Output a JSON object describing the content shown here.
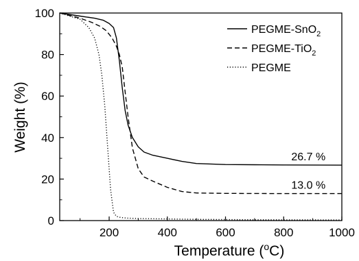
{
  "chart_data": {
    "type": "line",
    "title": "",
    "xlabel": "Temperature (°C)",
    "xlabel_parts": [
      "Temperature (",
      "o",
      "C)"
    ],
    "ylabel": "Weight (%)",
    "xlim": [
      30,
      1000
    ],
    "ylim": [
      0,
      100
    ],
    "x_ticks": [
      200,
      400,
      600,
      800,
      1000
    ],
    "y_ticks": [
      0,
      20,
      40,
      60,
      80,
      100
    ],
    "x_tick_labels": [
      "200",
      "400",
      "600",
      "800",
      "1000"
    ],
    "y_tick_labels": [
      "0",
      "20",
      "40",
      "60",
      "80",
      "100"
    ],
    "grid": false,
    "legend_position": "top-right",
    "series": [
      {
        "name": "PEGME-SnO2",
        "label_main": "PEGME-SnO",
        "label_sub": "2",
        "style": "solid",
        "color": "#000000",
        "x": [
          30,
          100,
          150,
          180,
          200,
          215,
          225,
          235,
          245,
          255,
          265,
          280,
          300,
          320,
          350,
          400,
          450,
          500,
          600,
          700,
          800,
          1000
        ],
        "y": [
          100,
          98.5,
          97.5,
          96.5,
          95,
          93,
          88,
          77,
          64,
          53,
          46,
          40,
          35.5,
          33,
          31.5,
          30,
          28.5,
          27.5,
          27,
          26.9,
          26.8,
          26.7
        ]
      },
      {
        "name": "PEGME-TiO2",
        "label_main": "PEGME-TiO",
        "label_sub": "2",
        "style": "dashed",
        "color": "#000000",
        "x": [
          30,
          100,
          140,
          170,
          190,
          210,
          225,
          235,
          245,
          255,
          265,
          280,
          300,
          320,
          350,
          400,
          450,
          500,
          600,
          800,
          1000
        ],
        "y": [
          100,
          97.5,
          95.5,
          93.5,
          91.5,
          88,
          84,
          80,
          74,
          62,
          50,
          35,
          25,
          21,
          19,
          16,
          14,
          13.3,
          13.1,
          13.0,
          13.0
        ]
      },
      {
        "name": "PEGME",
        "label_main": "PEGME",
        "label_sub": "",
        "style": "dotted",
        "color": "#000000",
        "x": [
          30,
          100,
          130,
          150,
          165,
          175,
          185,
          195,
          205,
          215,
          225,
          240,
          260,
          300,
          400,
          500,
          700,
          1000
        ],
        "y": [
          100,
          97,
          93,
          88,
          80,
          70,
          55,
          35,
          15,
          4,
          2,
          1.5,
          1.2,
          1.0,
          0.8,
          0.6,
          0.4,
          0.3
        ]
      }
    ],
    "annotations": [
      {
        "text": "26.7 %",
        "x": 885,
        "y": 26.7
      },
      {
        "text": "13.0 %",
        "x": 885,
        "y": 13.0
      }
    ]
  }
}
